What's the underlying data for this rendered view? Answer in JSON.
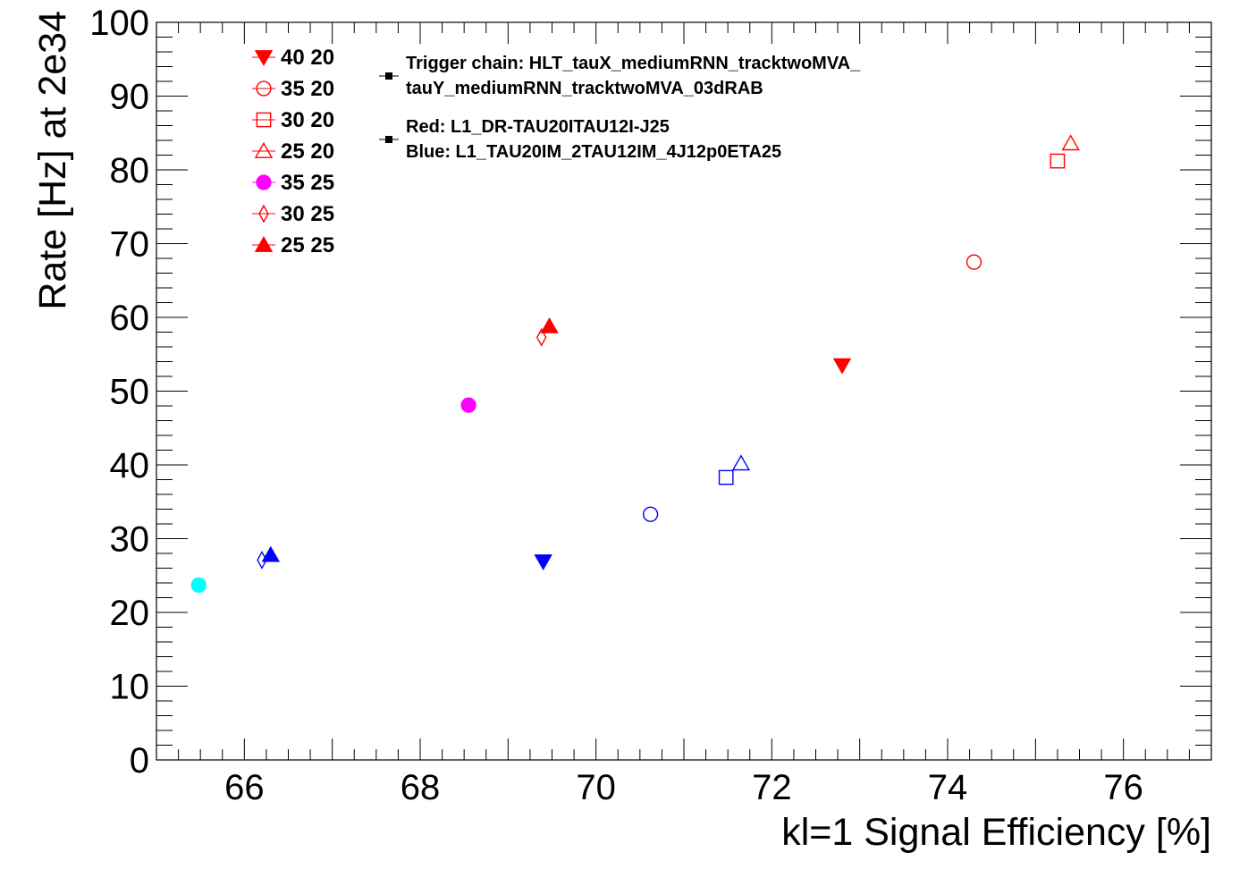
{
  "chart_data": {
    "type": "scatter",
    "xlabel": "kl=1 Signal Efficiency [%]",
    "ylabel": "Rate [Hz] at 2e34",
    "xlim": [
      65,
      77
    ],
    "ylim": [
      0,
      100
    ],
    "x_ticks": [
      "66",
      "68",
      "70",
      "72",
      "74",
      "76"
    ],
    "y_ticks": [
      "0",
      "10",
      "20",
      "30",
      "40",
      "50",
      "60",
      "70",
      "80",
      "90",
      "100"
    ],
    "grid": false,
    "legend": {
      "placement": "top-left",
      "entries": [
        {
          "label": "40 20",
          "marker": "triangle-down-filled",
          "color": "#ff0000"
        },
        {
          "label": "35 20",
          "marker": "circle-open",
          "color": "#ff0000"
        },
        {
          "label": "30 20",
          "marker": "square-open",
          "color": "#ff0000"
        },
        {
          "label": "25 20",
          "marker": "triangle-up-open",
          "color": "#ff0000"
        },
        {
          "label": "35 25",
          "marker": "circle-filled",
          "color": "#ff00ff"
        },
        {
          "label": "30 25",
          "marker": "diamond-open",
          "color": "#ff0000"
        },
        {
          "label": "25 25",
          "marker": "triangle-up-filled",
          "color": "#ff0000"
        }
      ]
    },
    "annotations": [
      {
        "lines": [
          "Trigger chain: HLT_tauX_mediumRNN_tracktwoMVA_",
          "tauY_mediumRNN_tracktwoMVA_03dRAB"
        ]
      },
      {
        "lines": [
          "Red: L1_DR-TAU20ITAU12I-J25",
          "Blue: L1_TAU20IM_2TAU12IM_4J12p0ETA25"
        ]
      }
    ],
    "points": [
      {
        "x": 72.8,
        "y": 53.5,
        "marker": "triangle-down-filled",
        "color": "#ff0000"
      },
      {
        "x": 74.3,
        "y": 67.5,
        "marker": "circle-open",
        "color": "#ff0000"
      },
      {
        "x": 75.25,
        "y": 81.2,
        "marker": "square-open",
        "color": "#ff0000"
      },
      {
        "x": 75.4,
        "y": 83.6,
        "marker": "triangle-up-open",
        "color": "#ff0000"
      },
      {
        "x": 68.55,
        "y": 48.1,
        "marker": "circle-filled",
        "color": "#ff00ff"
      },
      {
        "x": 69.38,
        "y": 57.3,
        "marker": "diamond-open",
        "color": "#ff0000"
      },
      {
        "x": 69.47,
        "y": 58.8,
        "marker": "triangle-up-filled",
        "color": "#ff0000"
      },
      {
        "x": 69.4,
        "y": 26.9,
        "marker": "triangle-down-filled",
        "color": "#0000ff"
      },
      {
        "x": 70.62,
        "y": 33.3,
        "marker": "circle-open",
        "color": "#0000ff"
      },
      {
        "x": 71.48,
        "y": 38.3,
        "marker": "square-open",
        "color": "#0000ff"
      },
      {
        "x": 71.65,
        "y": 40.2,
        "marker": "triangle-up-open",
        "color": "#0000ff"
      },
      {
        "x": 65.48,
        "y": 23.7,
        "marker": "circle-filled",
        "color": "#00ffff"
      },
      {
        "x": 66.2,
        "y": 27.1,
        "marker": "diamond-open",
        "color": "#0000ff"
      },
      {
        "x": 66.3,
        "y": 27.8,
        "marker": "triangle-up-filled",
        "color": "#0000ff"
      }
    ]
  }
}
